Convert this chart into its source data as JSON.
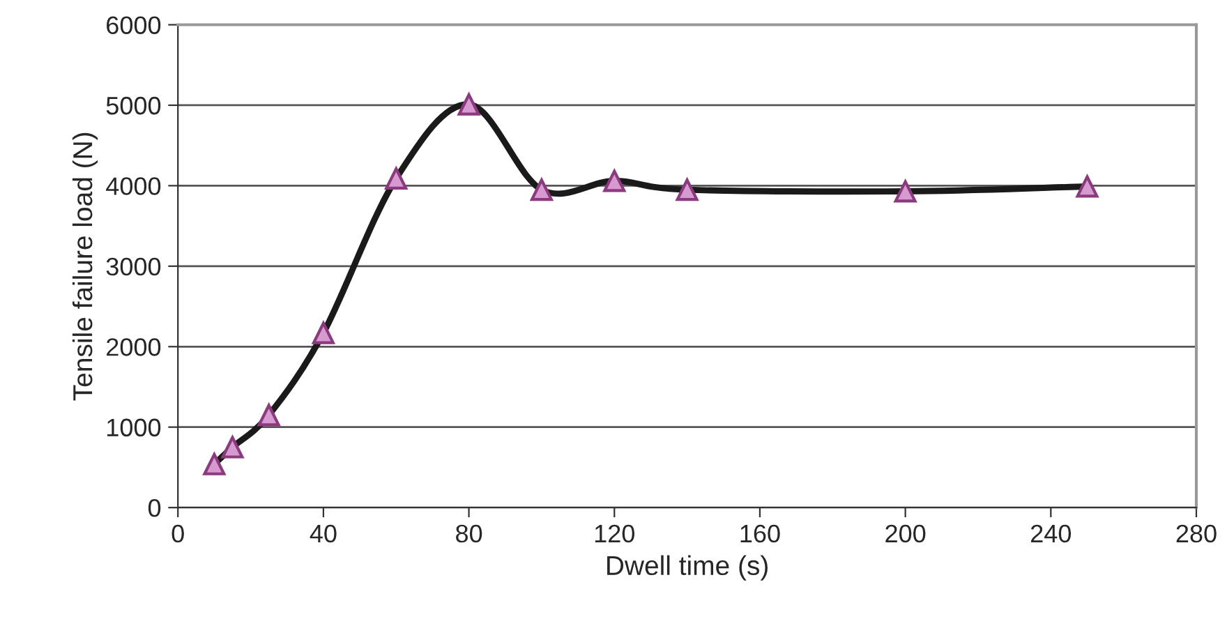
{
  "chart_data": {
    "type": "line",
    "xlabel": "Dwell time (s)",
    "ylabel": "Tensile failure load (N)",
    "x": [
      10,
      15,
      25,
      40,
      60,
      80,
      100,
      120,
      140,
      200,
      250
    ],
    "series": [
      {
        "color": "#1a1a1a",
        "values": [
          540,
          750,
          1150,
          2170,
          4090,
          5010,
          3950,
          4060,
          3950,
          3930,
          3990
        ]
      }
    ],
    "marker": "triangle",
    "line_style": "solid",
    "xlim": [
      0,
      280
    ],
    "xticks": [
      0,
      40,
      80,
      120,
      160,
      200,
      240,
      280
    ],
    "ylim": [
      0,
      6000
    ],
    "yticks": [
      0,
      1000,
      2000,
      3000,
      4000,
      5000,
      6000
    ],
    "grid": "y",
    "legend": false
  }
}
